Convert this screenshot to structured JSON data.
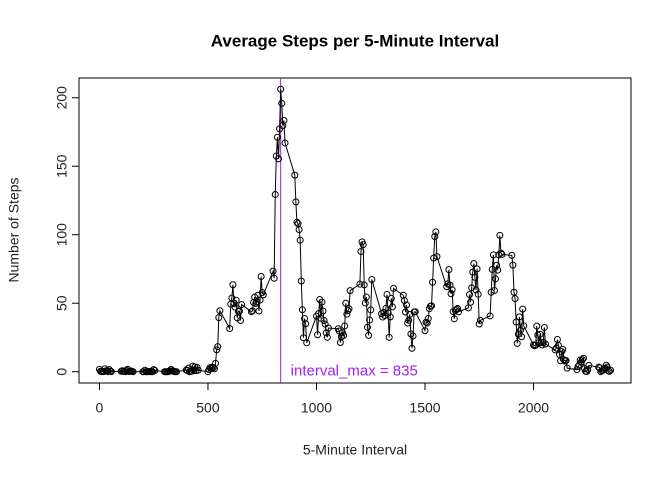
{
  "chart_data": {
    "type": "line",
    "title": "Average Steps per 5-Minute Interval",
    "xlabel": "5-Minute Interval",
    "ylabel": "Number of Steps",
    "x": [
      0,
      5,
      10,
      15,
      20,
      25,
      30,
      35,
      40,
      45,
      50,
      55,
      100,
      105,
      110,
      115,
      120,
      125,
      130,
      135,
      140,
      145,
      150,
      155,
      200,
      205,
      210,
      215,
      220,
      225,
      230,
      235,
      240,
      245,
      250,
      255,
      300,
      305,
      310,
      315,
      320,
      325,
      330,
      335,
      340,
      345,
      350,
      355,
      400,
      405,
      410,
      415,
      420,
      425,
      430,
      435,
      440,
      445,
      450,
      455,
      500,
      505,
      510,
      515,
      520,
      525,
      530,
      535,
      540,
      545,
      550,
      555,
      600,
      605,
      610,
      615,
      620,
      625,
      630,
      635,
      640,
      645,
      650,
      655,
      700,
      705,
      710,
      715,
      720,
      725,
      730,
      735,
      740,
      745,
      750,
      755,
      800,
      805,
      810,
      815,
      820,
      825,
      830,
      835,
      840,
      845,
      850,
      855,
      900,
      905,
      910,
      915,
      920,
      925,
      930,
      935,
      940,
      945,
      950,
      955,
      1000,
      1005,
      1010,
      1015,
      1020,
      1025,
      1030,
      1035,
      1040,
      1045,
      1050,
      1055,
      1100,
      1105,
      1110,
      1115,
      1120,
      1125,
      1130,
      1135,
      1140,
      1145,
      1150,
      1155,
      1200,
      1205,
      1210,
      1215,
      1220,
      1225,
      1230,
      1235,
      1240,
      1245,
      1250,
      1255,
      1300,
      1305,
      1310,
      1315,
      1320,
      1325,
      1330,
      1335,
      1340,
      1345,
      1350,
      1355,
      1400,
      1405,
      1410,
      1415,
      1420,
      1425,
      1430,
      1435,
      1440,
      1445,
      1450,
      1455,
      1500,
      1505,
      1510,
      1515,
      1520,
      1525,
      1530,
      1535,
      1540,
      1545,
      1550,
      1555,
      1600,
      1605,
      1610,
      1615,
      1620,
      1625,
      1630,
      1635,
      1640,
      1645,
      1650,
      1655,
      1700,
      1705,
      1710,
      1715,
      1720,
      1725,
      1730,
      1735,
      1740,
      1745,
      1750,
      1755,
      1800,
      1805,
      1810,
      1815,
      1820,
      1825,
      1830,
      1835,
      1840,
      1845,
      1850,
      1855,
      1900,
      1905,
      1910,
      1915,
      1920,
      1925,
      1930,
      1935,
      1940,
      1945,
      1950,
      1955,
      2000,
      2005,
      2010,
      2015,
      2020,
      2025,
      2030,
      2035,
      2040,
      2045,
      2050,
      2055,
      2100,
      2105,
      2110,
      2115,
      2120,
      2125,
      2130,
      2135,
      2140,
      2145,
      2150,
      2155,
      2200,
      2205,
      2210,
      2215,
      2220,
      2225,
      2230,
      2235,
      2240,
      2245,
      2250,
      2255,
      2300,
      2305,
      2310,
      2315,
      2320,
      2325,
      2330,
      2335,
      2340,
      2345,
      2350,
      2355
    ],
    "values": [
      1.7,
      0.3,
      0.1,
      0.2,
      0.1,
      2.1,
      0.5,
      0.9,
      0,
      1.5,
      0.3,
      0.1,
      0.3,
      0.7,
      0.2,
      0.3,
      0,
      1.1,
      1.8,
      0.2,
      0.2,
      0.4,
      0.3,
      0,
      0,
      0,
      1.1,
      0,
      0,
      0.1,
      0,
      0.2,
      0,
      0,
      1.5,
      0.9,
      0,
      0,
      0,
      0,
      0.2,
      0.6,
      1.6,
      0.6,
      0.5,
      0.1,
      0,
      0,
      1.2,
      0.9,
      2.6,
      0,
      0.3,
      0.4,
      4.1,
      0.7,
      3.5,
      0.8,
      3.1,
      1.1,
      0,
      1.6,
      3,
      2.2,
      3.3,
      3,
      2.1,
      6.1,
      16,
      18.3,
      39.5,
      44.5,
      31.5,
      49.3,
      53.8,
      63.5,
      50,
      47.1,
      52.2,
      39.3,
      44,
      44.2,
      37.4,
      49,
      43.8,
      44.4,
      50.5,
      54.5,
      49.9,
      51,
      55.7,
      44.3,
      52.3,
      69.5,
      57.8,
      56.2,
      73.4,
      68.2,
      129.4,
      157.5,
      171.2,
      155.4,
      177.3,
      206.2,
      195.9,
      179.6,
      183.4,
      167,
      143.5,
      124,
      109.1,
      108.1,
      103.7,
      96,
      66.2,
      45.2,
      24.8,
      38.8,
      35,
      21.1,
      40.6,
      27,
      42.4,
      52.7,
      38.9,
      50.8,
      44.3,
      37.4,
      34.7,
      28.3,
      25.1,
      31.9,
      31.4,
      29.7,
      21.3,
      25.5,
      28.4,
      26.5,
      33.4,
      50,
      42,
      44.6,
      46,
      59.2,
      63.9,
      87.7,
      94.8,
      92.8,
      63.4,
      50.2,
      54.5,
      32.4,
      26.5,
      37.7,
      45.1,
      67.3,
      42.3,
      39.9,
      43.3,
      41,
      46.2,
      56.4,
      42.8,
      25.1,
      40,
      53.5,
      47.3,
      60.8,
      55.8,
      52,
      43.6,
      48.7,
      35.5,
      37.5,
      41.8,
      27.5,
      17.1,
      26.1,
      43.6,
      43.8,
      30,
      36.1,
      35.5,
      38.8,
      46,
      47.8,
      48.1,
      65.3,
      82.9,
      98.7,
      102.1,
      84,
      62.1,
      64.1,
      74.5,
      63.2,
      56.9,
      59.8,
      43.9,
      38.6,
      44.7,
      45.5,
      46.2,
      43.7,
      46.6,
      56.3,
      50.7,
      61.2,
      72.7,
      78.9,
      68.9,
      59.7,
      75.1,
      56.5,
      34.8,
      37.5,
      40.7,
      58,
      74.7,
      85.3,
      59.3,
      67.8,
      77.7,
      74.2,
      85.3,
      99.5,
      86.6,
      85.6,
      84.9,
      77.8,
      58,
      53.4,
      36.3,
      20.7,
      27.4,
      40,
      30.2,
      25.5,
      45.7,
      33.5,
      19.6,
      19,
      19.3,
      33.3,
      26.8,
      21.2,
      27.3,
      21.3,
      19.5,
      21.3,
      32.3,
      20.2,
      15.9,
      17.2,
      23.5,
      19.2,
      12.5,
      8,
      14.7,
      16.3,
      8.7,
      7.8,
      8.1,
      2.6,
      1.5,
      3.7,
      4.8,
      8.5,
      7.1,
      8.7,
      9.8,
      2.2,
      0.3,
      0.1,
      1.6,
      4.6,
      3.3,
      2.8,
      0,
      0.8,
      1,
      1.6,
      2.6,
      4.7,
      3.3,
      0.6,
      0.2,
      1.1
    ],
    "color": "#000000",
    "marker": "circle",
    "xlim": [
      -94.2,
      2449.2
    ],
    "ylim": [
      -8.25,
      214.42
    ],
    "xticks": [
      0,
      500,
      1000,
      1500,
      2000
    ],
    "yticks": [
      0,
      50,
      100,
      150,
      200
    ],
    "vline": {
      "value": 835,
      "color": "#a020f0"
    },
    "annotation": {
      "text": "interval_max = 835",
      "color": "#a020f0"
    }
  }
}
